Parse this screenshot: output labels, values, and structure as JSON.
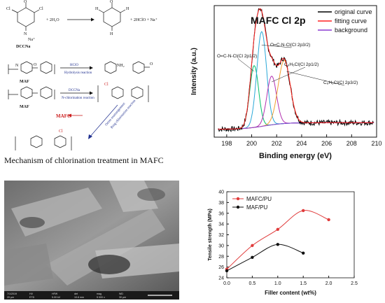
{
  "scheme": {
    "caption": "Mechanism of chlorination treatment in MAFC",
    "reaction1": {
      "reactant": "DCCNa",
      "water": "+ 2H₂O",
      "products": "+ 2HClO + Na⁺",
      "sodium": "Na⁺"
    },
    "atoms": {
      "o": "O",
      "n": "N",
      "cl": "Cl",
      "h": "H",
      "nh2": "NH₂"
    },
    "reaction2": {
      "reagent": "HClO",
      "name": "Hydrolysis reaction",
      "label": "MAF"
    },
    "reaction3": {
      "reagent": "DCCNa",
      "name": "N-chlorination reaction",
      "label": "MAF"
    },
    "product_label": "MAFC",
    "rearrangement": [
      "Orton rearrangement",
      "Ring chlorination reaction"
    ],
    "colors": {
      "arrow_red": "#cc1f1f",
      "reagent_blue": "#1f2f8f"
    }
  },
  "chart_data": [
    {
      "type": "line",
      "title": "MAFC Cl 2p",
      "xlabel": "Binding energy (eV)",
      "ylabel": "Intensity (a.u.)",
      "xlim": [
        197,
        210
      ],
      "xticks": [
        198,
        200,
        202,
        204,
        206,
        208,
        210
      ],
      "x_reversed": false,
      "grid": false,
      "legend_position": "top-right",
      "series": [
        {
          "name": "original curve",
          "color": "#000000"
        },
        {
          "name": "fitting curve",
          "color": "#ff2020"
        },
        {
          "name": "background",
          "color": "#8a3bd1"
        }
      ],
      "peaks": [
        {
          "label": "O=C-N-Cl(Cl 2p1/2)",
          "center": 200.2,
          "height": 0.47,
          "width": 0.55,
          "color": "#00c06a"
        },
        {
          "label": "O=C-N-Cl(Cl 2p3/2)",
          "center": 200.8,
          "height": 0.72,
          "width": 0.6,
          "color": "#2aa8d8"
        },
        {
          "label": "C₆H₅Cl(Cl 2p1/2)",
          "center": 201.6,
          "height": 0.37,
          "width": 0.6,
          "color": "#b230b0"
        },
        {
          "label": "C₆H₅Cl(Cl 2p3/2)",
          "center": 202.6,
          "height": 0.48,
          "width": 0.75,
          "color": "#f0a030"
        }
      ],
      "background_level": 0.06
    },
    {
      "type": "line",
      "xlabel": "Filler content  (wt%)",
      "ylabel": "Tensile strength (MPa)",
      "xlim": [
        0,
        2.5
      ],
      "ylim": [
        24,
        40
      ],
      "xticks": [
        0.0,
        0.5,
        1.0,
        1.5,
        2.0,
        2.5
      ],
      "yticks": [
        24,
        26,
        28,
        30,
        32,
        34,
        36,
        38,
        40
      ],
      "grid": false,
      "legend_position": "top-left",
      "series": [
        {
          "name": "MAFC/PU",
          "color": "#e03b3b",
          "x": [
            0.0,
            0.5,
            1.0,
            1.5,
            2.0
          ],
          "values": [
            25.6,
            30.0,
            33.0,
            36.5,
            34.8
          ]
        },
        {
          "name": "MAF/PU",
          "color": "#111111",
          "x": [
            0.0,
            0.5,
            1.0,
            1.5
          ],
          "values": [
            25.3,
            27.8,
            30.2,
            28.6
          ]
        }
      ]
    }
  ],
  "sem": {
    "footer_info": [
      "7/1/2019",
      "HV",
      "HFW",
      "det",
      "mag",
      "WD",
      "20 μm",
      "ETD",
      "5.00 kV",
      "10.6 mm",
      "5 000 x",
      "30 μm"
    ]
  }
}
